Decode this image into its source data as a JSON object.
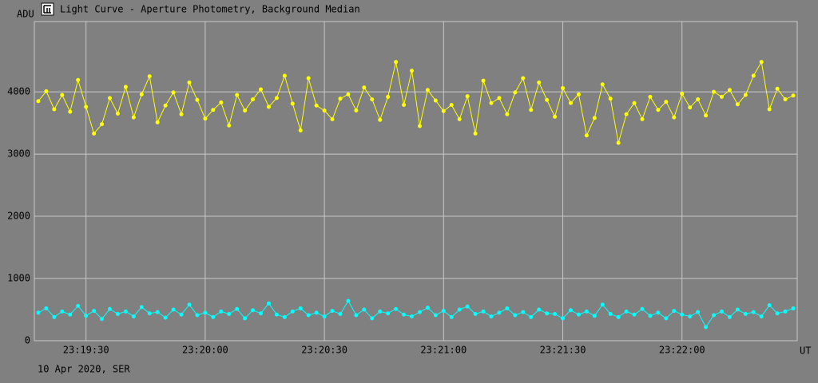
{
  "chart_data": {
    "type": "line",
    "title": "Light Curve - Aperture Photometry, Background Median",
    "ylabel": "ADU",
    "xlabel": "UT",
    "footnote": "10 Apr 2020, SER",
    "grid": true,
    "xlim": [
      "23:19:17",
      "23:22:29"
    ],
    "xticks": [
      "23:19:30",
      "23:20:00",
      "23:20:30",
      "23:21:00",
      "23:21:30",
      "23:22:00"
    ],
    "ylim": [
      0,
      5130
    ],
    "yticks": [
      0,
      1000,
      2000,
      3000,
      4000
    ],
    "x": [
      "23:19:18",
      "23:19:20",
      "23:19:22",
      "23:19:24",
      "23:19:26",
      "23:19:28",
      "23:19:30",
      "23:19:32",
      "23:19:34",
      "23:19:36",
      "23:19:38",
      "23:19:40",
      "23:19:42",
      "23:19:44",
      "23:19:46",
      "23:19:48",
      "23:19:50",
      "23:19:52",
      "23:19:54",
      "23:19:56",
      "23:19:58",
      "23:20:00",
      "23:20:02",
      "23:20:04",
      "23:20:06",
      "23:20:08",
      "23:20:10",
      "23:20:12",
      "23:20:14",
      "23:20:16",
      "23:20:18",
      "23:20:20",
      "23:20:22",
      "23:20:24",
      "23:20:26",
      "23:20:28",
      "23:20:30",
      "23:20:32",
      "23:20:34",
      "23:20:36",
      "23:20:38",
      "23:20:40",
      "23:20:42",
      "23:20:44",
      "23:20:46",
      "23:20:48",
      "23:20:50",
      "23:20:52",
      "23:20:54",
      "23:20:56",
      "23:20:58",
      "23:21:00",
      "23:21:02",
      "23:21:04",
      "23:21:06",
      "23:21:08",
      "23:21:10",
      "23:21:12",
      "23:21:14",
      "23:21:16",
      "23:21:18",
      "23:21:20",
      "23:21:22",
      "23:21:24",
      "23:21:26",
      "23:21:28",
      "23:21:30",
      "23:21:32",
      "23:21:34",
      "23:21:36",
      "23:21:38",
      "23:21:40",
      "23:21:42",
      "23:21:44",
      "23:21:46",
      "23:21:48",
      "23:21:50",
      "23:21:52",
      "23:21:54",
      "23:21:56",
      "23:21:58",
      "23:22:00",
      "23:22:02",
      "23:22:04",
      "23:22:06",
      "23:22:08",
      "23:22:10",
      "23:22:12",
      "23:22:14",
      "23:22:16",
      "23:22:18",
      "23:22:20",
      "23:22:22",
      "23:22:24",
      "23:22:26",
      "23:22:28"
    ],
    "series": [
      {
        "color": "#ffff00",
        "values": [
          3850,
          4010,
          3720,
          3950,
          3680,
          4190,
          3760,
          3330,
          3480,
          3900,
          3650,
          4080,
          3590,
          3960,
          4250,
          3510,
          3780,
          3990,
          3640,
          4150,
          3870,
          3570,
          3710,
          3830,
          3460,
          3950,
          3700,
          3880,
          4040,
          3760,
          3900,
          4260,
          3810,
          3380,
          4220,
          3780,
          3700,
          3560,
          3890,
          3960,
          3700,
          4070,
          3880,
          3550,
          3920,
          4480,
          3790,
          4340,
          3450,
          4030,
          3860,
          3690,
          3790,
          3560,
          3930,
          3330,
          4180,
          3820,
          3900,
          3640,
          3990,
          4220,
          3710,
          4150,
          3870,
          3600,
          4060,
          3820,
          3960,
          3300,
          3580,
          4120,
          3890,
          3180,
          3640,
          3820,
          3560,
          3920,
          3710,
          3840,
          3590,
          3970,
          3750,
          3880,
          3620,
          4000,
          3920,
          4030,
          3800,
          3950,
          4260,
          4480,
          3720,
          4050,
          3880,
          3940
        ]
      },
      {
        "color": "#00ffff",
        "values": [
          450,
          520,
          380,
          470,
          420,
          560,
          400,
          480,
          350,
          510,
          430,
          470,
          390,
          540,
          440,
          460,
          370,
          500,
          420,
          580,
          410,
          450,
          380,
          470,
          430,
          510,
          360,
          490,
          440,
          600,
          420,
          380,
          470,
          520,
          410,
          450,
          390,
          480,
          430,
          640,
          410,
          500,
          360,
          470,
          440,
          510,
          420,
          390,
          460,
          530,
          410,
          480,
          380,
          500,
          550,
          430,
          470,
          390,
          450,
          520,
          410,
          460,
          380,
          500,
          440,
          430,
          360,
          490,
          420,
          470,
          400,
          580,
          430,
          380,
          470,
          420,
          510,
          400,
          450,
          360,
          480,
          420,
          390,
          460,
          220,
          410,
          470,
          380,
          500,
          430,
          460,
          390,
          570,
          440,
          470,
          520
        ]
      }
    ]
  }
}
